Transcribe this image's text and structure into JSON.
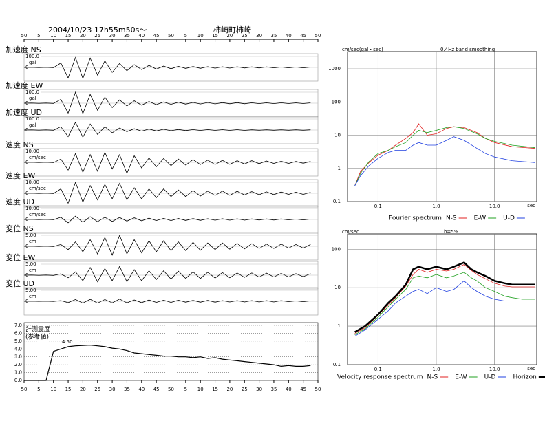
{
  "header": {
    "datetime": "2004/10/23  17h55m50s～",
    "station": "柿崎町柿崎"
  },
  "chart_data": [
    {
      "type": "waveform",
      "xlim": [
        0,
        100
      ],
      "xticks": [
        {
          "value": 0,
          "label": "50"
        },
        {
          "value": 5,
          "label": "5"
        },
        {
          "value": 10,
          "label": "10"
        },
        {
          "value": 15,
          "label": "15"
        },
        {
          "value": 20,
          "label": "20"
        },
        {
          "value": 25,
          "label": "25"
        },
        {
          "value": 30,
          "label": "30"
        },
        {
          "value": 35,
          "label": "35"
        },
        {
          "value": 40,
          "label": "40"
        },
        {
          "value": 45,
          "label": "45"
        },
        {
          "value": 50,
          "label": "50"
        },
        {
          "value": 55,
          "label": "5"
        },
        {
          "value": 60,
          "label": "10"
        },
        {
          "value": 65,
          "label": "15"
        },
        {
          "value": 70,
          "label": "20"
        },
        {
          "value": 75,
          "label": "25"
        },
        {
          "value": 80,
          "label": "30"
        },
        {
          "value": 85,
          "label": "35"
        },
        {
          "value": 90,
          "label": "40"
        },
        {
          "value": 95,
          "label": "45"
        },
        {
          "value": 100,
          "label": "50"
        }
      ],
      "x": [
        0,
        2.5,
        5,
        7.5,
        10,
        12.5,
        15,
        17.5,
        20,
        22.5,
        25,
        27.5,
        30,
        32.5,
        35,
        37.5,
        40,
        42.5,
        45,
        47.5,
        50,
        52.5,
        55,
        57.5,
        60,
        62.5,
        65,
        67.5,
        70,
        72.5,
        75,
        77.5,
        80,
        82.5,
        85,
        87.5,
        90,
        92.5,
        95,
        97.5
      ],
      "series": [
        {
          "name": "加速度 NS",
          "unit": "gal",
          "color": "#000000",
          "ylim": [
            -100,
            100
          ],
          "yticks": [
            {
              "value": 100,
              "label": "100.0"
            },
            0
          ],
          "values": [
            0,
            1,
            -1,
            1,
            -2,
            40,
            -95,
            90,
            -100,
            85,
            -70,
            60,
            -45,
            35,
            -30,
            25,
            -20,
            18,
            -15,
            12,
            -12,
            10,
            -9,
            8,
            -8,
            7,
            -7,
            6,
            -6,
            6,
            -5,
            5,
            -5,
            5,
            -4,
            4,
            -4,
            4,
            -4,
            3
          ]
        },
        {
          "name": "加速度 EW",
          "unit": "gal",
          "color": "#000000",
          "ylim": [
            -100,
            100
          ],
          "yticks": [
            {
              "value": 100,
              "label": "100.0"
            },
            0
          ],
          "values": [
            0,
            1,
            -1,
            1,
            -2,
            35,
            -90,
            100,
            -95,
            80,
            -65,
            55,
            -40,
            30,
            -25,
            22,
            -18,
            15,
            -13,
            11,
            -10,
            9,
            -8,
            7,
            -7,
            6,
            -6,
            5,
            -5,
            5,
            -5,
            4,
            -4,
            4,
            -4,
            4,
            -3,
            3,
            -3,
            3
          ]
        },
        {
          "name": "加速度 UD",
          "unit": "gal",
          "color": "#000000",
          "ylim": [
            -100,
            100
          ],
          "yticks": [
            {
              "value": 100,
              "label": "100.0"
            },
            0
          ],
          "values": [
            0,
            1,
            -1,
            1,
            -2,
            30,
            -60,
            70,
            -65,
            55,
            -40,
            30,
            -25,
            18,
            -15,
            12,
            -10,
            9,
            -8,
            7,
            -6,
            5,
            -5,
            4,
            -4,
            4,
            -3,
            3,
            -3,
            3,
            -3,
            2,
            -2,
            2,
            -2,
            2,
            -2,
            2,
            -2,
            2
          ]
        },
        {
          "name": "速度 NS",
          "unit": "cm/sec",
          "color": "#000000",
          "ylim": [
            -10,
            10
          ],
          "yticks": [
            {
              "value": 10,
              "label": "10.00"
            },
            0
          ],
          "values": [
            0,
            0.1,
            -0.1,
            0.1,
            -0.2,
            3,
            -7,
            8,
            -9,
            7,
            -8,
            9,
            -6,
            7,
            -10,
            6,
            -5,
            4,
            -4,
            3.5,
            -3,
            3,
            -2.5,
            2.5,
            -2,
            2,
            -2,
            1.8,
            -1.8,
            1.5,
            -1.5,
            1.5,
            -1.2,
            1.2,
            -1,
            1,
            -1,
            0.8,
            -0.8,
            0.8
          ]
        },
        {
          "name": "速度 EW",
          "unit": "cm/sec",
          "color": "#000000",
          "ylim": [
            -10,
            10
          ],
          "yticks": [
            {
              "value": 10,
              "label": "10.00"
            },
            0
          ],
          "values": [
            0,
            0.1,
            -0.1,
            0.1,
            -0.2,
            4,
            -9,
            10,
            -8,
            7,
            -6,
            8,
            -5,
            9,
            -6,
            5,
            -5,
            4,
            -4,
            4,
            -3,
            3,
            -3,
            2.5,
            -2.5,
            2,
            -2,
            2,
            -1.8,
            1.8,
            -1.5,
            1.5,
            -1.3,
            1.3,
            -1.2,
            1.2,
            -1,
            1,
            -1,
            0.9
          ]
        },
        {
          "name": "速度 UD",
          "unit": "cm/sec",
          "color": "#000000",
          "ylim": [
            -10,
            10
          ],
          "yticks": [
            {
              "value": 10,
              "label": "10.00"
            },
            0
          ],
          "values": [
            0,
            0.1,
            -0.1,
            0.1,
            -0.2,
            2,
            -3,
            3,
            -2.5,
            2.5,
            -2,
            2,
            -1.8,
            1.8,
            -1.5,
            1.5,
            -1.2,
            1.2,
            -1,
            1,
            -1,
            0.9,
            -0.9,
            0.8,
            -0.8,
            0.7,
            -0.7,
            0.7,
            -0.6,
            0.6,
            -0.6,
            0.5,
            -0.5,
            0.5,
            -0.5,
            0.5,
            -0.4,
            0.4,
            -0.4,
            0.4
          ]
        },
        {
          "name": "変位 NS",
          "unit": "cm",
          "color": "#000000",
          "ylim": [
            -5,
            5
          ],
          "yticks": [
            {
              "value": 5,
              "label": "5.00"
            },
            0
          ],
          "values": [
            0,
            0.05,
            -0.05,
            0.05,
            -0.1,
            0.8,
            -1.5,
            2,
            -2.5,
            3,
            -3.5,
            4,
            -4,
            5,
            -3.5,
            3,
            -3,
            2.5,
            -2.5,
            2.5,
            -2,
            2,
            -2,
            1.8,
            -1.8,
            1.5,
            -1.5,
            1.5,
            -1.3,
            1.3,
            -1.2,
            1.2,
            -1,
            1,
            -1,
            1,
            -0.8,
            0.8,
            -0.8,
            0.8
          ]
        },
        {
          "name": "変位 EW",
          "unit": "cm",
          "color": "#000000",
          "ylim": [
            -5,
            5
          ],
          "yticks": [
            {
              "value": 5,
              "label": "5.00"
            },
            0
          ],
          "values": [
            0,
            0.05,
            -0.05,
            0.05,
            -0.1,
            0.6,
            -1.2,
            1.5,
            -2.5,
            3.5,
            -3,
            3,
            -2.5,
            4,
            -3,
            2.5,
            -2.5,
            2,
            -2,
            2,
            -1.8,
            1.8,
            -1.5,
            1.5,
            -1.5,
            1.3,
            -1.3,
            1.2,
            -1.2,
            1,
            -1,
            1,
            -0.9,
            0.9,
            -0.8,
            0.8,
            -0.8,
            0.7,
            -0.7,
            0.7
          ]
        },
        {
          "name": "変位 UD",
          "unit": "cm",
          "color": "#000000",
          "ylim": [
            -5,
            5
          ],
          "yticks": [
            {
              "value": 5,
              "label": "5.00"
            },
            0
          ],
          "values": [
            0,
            0.02,
            -0.02,
            0.02,
            -0.05,
            0.3,
            -0.6,
            0.8,
            -0.8,
            0.9,
            -0.8,
            0.8,
            -0.7,
            1,
            -0.7,
            0.6,
            -0.6,
            0.6,
            -0.5,
            0.5,
            -0.5,
            0.5,
            -0.4,
            0.4,
            -0.4,
            0.4,
            -0.4,
            0.3,
            -0.3,
            0.3,
            -0.3,
            0.3,
            -0.3,
            0.3,
            -0.3,
            0.3,
            -0.2,
            0.2,
            -0.2,
            0.2
          ]
        }
      ]
    },
    {
      "type": "line",
      "title": "計測震度",
      "subtitle": "(参考値)",
      "annotation": "4.50",
      "color": "#000000",
      "grid": true,
      "xlim": [
        0,
        100
      ],
      "xticks": [
        {
          "value": 0,
          "label": "50"
        },
        {
          "value": 5,
          "label": "5"
        },
        {
          "value": 10,
          "label": "10"
        },
        {
          "value": 15,
          "label": "15"
        },
        {
          "value": 20,
          "label": "20"
        },
        {
          "value": 25,
          "label": "25"
        },
        {
          "value": 30,
          "label": "30"
        },
        {
          "value": 35,
          "label": "35"
        },
        {
          "value": 40,
          "label": "40"
        },
        {
          "value": 45,
          "label": "45"
        },
        {
          "value": 50,
          "label": "50"
        },
        {
          "value": 55,
          "label": "5"
        },
        {
          "value": 60,
          "label": "10"
        },
        {
          "value": 65,
          "label": "15"
        },
        {
          "value": 70,
          "label": "20"
        },
        {
          "value": 75,
          "label": "25"
        },
        {
          "value": 80,
          "label": "30"
        },
        {
          "value": 85,
          "label": "35"
        },
        {
          "value": 90,
          "label": "40"
        },
        {
          "value": 95,
          "label": "45"
        },
        {
          "value": 100,
          "label": "50"
        }
      ],
      "ylim": [
        0,
        7
      ],
      "yticks": [
        {
          "value": 0,
          "label": "0.0"
        },
        {
          "value": 1,
          "label": "1.0"
        },
        {
          "value": 2,
          "label": "2.0"
        },
        {
          "value": 3,
          "label": "3.0"
        },
        {
          "value": 4,
          "label": "4.0"
        },
        {
          "value": 5,
          "label": "5.0"
        },
        {
          "value": 6,
          "label": "6.0"
        },
        {
          "value": 7,
          "label": "7.0"
        }
      ],
      "x": [
        0,
        2.5,
        5,
        7.5,
        10,
        12.5,
        15,
        17.5,
        20,
        22.5,
        25,
        27.5,
        30,
        32.5,
        35,
        37.5,
        40,
        42.5,
        45,
        47.5,
        50,
        52.5,
        55,
        57.5,
        60,
        62.5,
        65,
        67.5,
        70,
        72.5,
        75,
        77.5,
        80,
        82.5,
        85,
        87.5,
        90,
        92.5,
        95,
        97.5
      ],
      "values": [
        0,
        0,
        0,
        0,
        3.7,
        4.0,
        4.3,
        4.4,
        4.45,
        4.5,
        4.4,
        4.3,
        4.1,
        4.0,
        3.8,
        3.5,
        3.4,
        3.3,
        3.2,
        3.1,
        3.1,
        3.0,
        3.0,
        2.9,
        3.0,
        2.8,
        2.9,
        2.7,
        2.6,
        2.5,
        2.4,
        2.3,
        2.2,
        2.1,
        2.0,
        1.8,
        1.9,
        1.8,
        1.8,
        1.9
      ]
    },
    {
      "type": "loglog",
      "title": "Fourier spectrum",
      "subtitle": "0.4Hz band smoothing",
      "y_label": "cm/sec(gal・sec)",
      "x_label": "sec",
      "grid": true,
      "xlim": [
        0.03,
        53
      ],
      "xticks": [
        0.1,
        {
          "value": 1,
          "label": "1.0"
        },
        {
          "value": 10,
          "label": "10.0"
        }
      ],
      "ylim": [
        0.1,
        3300
      ],
      "yticks": [
        0.1,
        1,
        10,
        100,
        1000
      ],
      "x": [
        0.04,
        0.05,
        0.07,
        0.1,
        0.15,
        0.2,
        0.3,
        0.4,
        0.5,
        0.7,
        1,
        1.5,
        2,
        3,
        5,
        7,
        10,
        20,
        50
      ],
      "series": [
        {
          "name": "N-S",
          "color": "#e02020",
          "values": [
            0.3,
            0.8,
            1.5,
            2.5,
            3.5,
            5,
            8,
            12,
            22,
            10,
            11,
            16,
            18,
            17,
            12,
            8,
            6,
            4.5,
            4
          ]
        },
        {
          "name": "E-W",
          "color": "#20a020",
          "values": [
            0.3,
            0.7,
            1.6,
            2.8,
            3.5,
            4.5,
            6,
            10,
            14,
            12,
            14,
            17,
            18,
            16,
            11,
            8,
            6.5,
            5,
            4.2
          ]
        },
        {
          "name": "U-D",
          "color": "#2040e0",
          "values": [
            0.3,
            0.6,
            1.2,
            2,
            3,
            3.5,
            3.5,
            5,
            6,
            5,
            5,
            7,
            9,
            7,
            4,
            2.8,
            2.2,
            1.7,
            1.5
          ]
        }
      ]
    },
    {
      "type": "loglog",
      "title": "Velocity response spectrum",
      "subtitle": "h=5%",
      "y_label": "cm/sec",
      "x_label": "sec",
      "grid": true,
      "xlim": [
        0.03,
        53
      ],
      "xticks": [
        0.1,
        {
          "value": 1,
          "label": "1.0"
        },
        {
          "value": 10,
          "label": "10.0"
        }
      ],
      "ylim": [
        0.1,
        250
      ],
      "yticks": [
        0.1,
        1,
        10,
        100
      ],
      "x": [
        0.04,
        0.06,
        0.1,
        0.15,
        0.2,
        0.3,
        0.4,
        0.5,
        0.7,
        1,
        1.5,
        2,
        3,
        4,
        5,
        7,
        10,
        15,
        20,
        30,
        50
      ],
      "series": [
        {
          "name": "N-S",
          "color": "#e02020",
          "values": [
            0.65,
            0.9,
            1.9,
            3.5,
            5.5,
            11,
            22,
            30,
            25,
            30,
            27,
            30,
            40,
            28,
            22,
            17,
            13,
            11,
            10.5,
            10.5,
            10.5
          ]
        },
        {
          "name": "E-W",
          "color": "#20a020",
          "values": [
            0.6,
            0.85,
            1.7,
            3.2,
            5,
            9,
            18,
            20,
            18,
            22,
            18,
            20,
            25,
            18,
            15,
            10,
            8,
            6,
            5.5,
            5,
            5
          ]
        },
        {
          "name": "U-D",
          "color": "#2040e0",
          "values": [
            0.55,
            0.8,
            1.5,
            2.5,
            4,
            6,
            8,
            9,
            7,
            10,
            8,
            9,
            15,
            10,
            8,
            6,
            5,
            4.5,
            4.5,
            4.5,
            4.5
          ]
        },
        {
          "name": "Horizon",
          "color": "#000000",
          "width": 2.5,
          "values": [
            0.7,
            1,
            2,
            4,
            6,
            12,
            30,
            35,
            30,
            35,
            30,
            35,
            45,
            30,
            25,
            20,
            15,
            13,
            12,
            12,
            12
          ]
        }
      ]
    }
  ]
}
